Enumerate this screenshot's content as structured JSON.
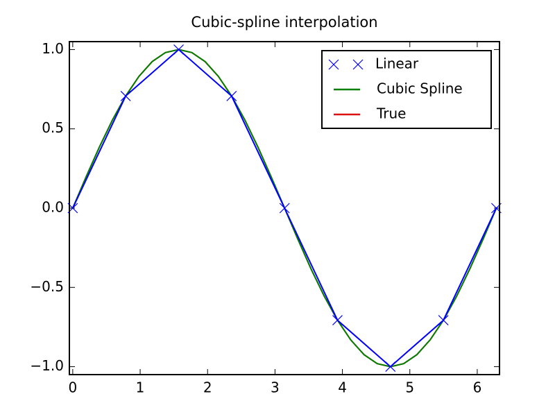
{
  "chart_data": {
    "type": "line",
    "title": "Cubic-spline interpolation",
    "xlim": [
      -0.05,
      6.33
    ],
    "ylim": [
      -1.05,
      1.05
    ],
    "xticks": [
      0,
      1,
      2,
      3,
      4,
      5,
      6
    ],
    "yticks": [
      {
        "value": -1.0,
        "label": "−1.0"
      },
      {
        "value": -0.5,
        "label": "−0.5"
      },
      {
        "value": 0.0,
        "label": "0.0"
      },
      0.5,
      {
        "value": 1.0,
        "label": "1.0"
      }
    ],
    "grid": false,
    "legend": "upper right",
    "series": [
      {
        "name": "Linear",
        "color": "#0000ff",
        "marker": "x",
        "line": true,
        "x": [
          0,
          0.785,
          1.571,
          2.356,
          3.142,
          3.927,
          4.712,
          5.498,
          6.283
        ],
        "values": [
          0,
          0.707,
          1,
          0.707,
          0,
          -0.707,
          -1,
          -0.707,
          0
        ]
      },
      {
        "name": "Cubic Spline",
        "color": "#008000",
        "line": true,
        "x": [
          0,
          0.196,
          0.393,
          0.589,
          0.785,
          0.982,
          1.178,
          1.374,
          1.571,
          1.767,
          1.963,
          2.16,
          2.356,
          2.553,
          2.749,
          2.945,
          3.142,
          3.338,
          3.534,
          3.731,
          3.927,
          4.123,
          4.32,
          4.516,
          4.712,
          4.909,
          5.105,
          5.301,
          5.498,
          5.694,
          5.89,
          6.087,
          6.283
        ],
        "values": [
          0,
          0.195,
          0.383,
          0.556,
          0.707,
          0.831,
          0.924,
          0.981,
          1,
          0.981,
          0.924,
          0.831,
          0.707,
          0.556,
          0.383,
          0.195,
          0,
          -0.195,
          -0.383,
          -0.556,
          -0.707,
          -0.831,
          -0.924,
          -0.981,
          -1,
          -0.981,
          -0.924,
          -0.831,
          -0.707,
          -0.556,
          -0.383,
          -0.195,
          0
        ]
      },
      {
        "name": "True",
        "color": "#dd1111",
        "line": true,
        "x": [
          0,
          0.196,
          0.393,
          0.589,
          0.785,
          0.982,
          1.178,
          1.374,
          1.571,
          1.767,
          1.963,
          2.16,
          2.356,
          2.553,
          2.749,
          2.945,
          3.142,
          3.338,
          3.534,
          3.731,
          3.927,
          4.123,
          4.32,
          4.516,
          4.712,
          4.909,
          5.105,
          5.301,
          5.498,
          5.694,
          5.89,
          6.087,
          6.283
        ],
        "values": [
          0,
          0.195,
          0.383,
          0.556,
          0.707,
          0.831,
          0.924,
          0.981,
          1,
          0.981,
          0.924,
          0.831,
          0.707,
          0.556,
          0.383,
          0.195,
          0,
          -0.195,
          -0.383,
          -0.556,
          -0.707,
          -0.831,
          -0.924,
          -0.981,
          -1,
          -0.981,
          -0.924,
          -0.831,
          -0.707,
          -0.556,
          -0.383,
          -0.195,
          0
        ]
      }
    ]
  }
}
